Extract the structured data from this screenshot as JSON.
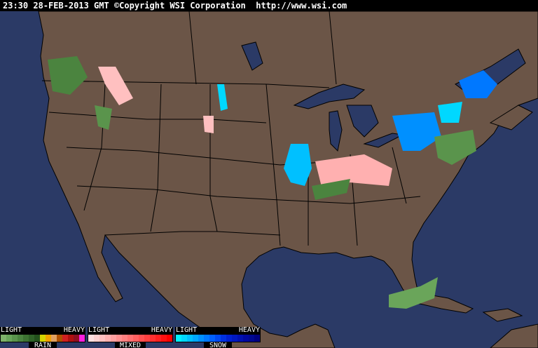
{
  "header": {
    "text": "23:30 28-FEB-2013 GMT ©Copyright WSI Corporation  http://www.wsi.com"
  },
  "colors": {
    "ocean": "#2b3a66",
    "land": "#6b5547",
    "lakes": "#2b3a66",
    "border": "#000000"
  },
  "legends": [
    {
      "name": "RAIN",
      "light": "LIGHT",
      "heavy": "HEAVY",
      "colors": [
        "#7fb26a",
        "#6aa55a",
        "#5a944c",
        "#4b843f",
        "#3d7332",
        "#2f6227",
        "#23511c",
        "#d4d400",
        "#f0a000",
        "#e0a060",
        "#b05000",
        "#d02020",
        "#b01010",
        "#901020",
        "#ff20e0"
      ]
    },
    {
      "name": "MIXED",
      "light": "LIGHT",
      "heavy": "HEAVY",
      "colors": [
        "#ffe0e0",
        "#ffd0d0",
        "#ffc0c0",
        "#ffb0b0",
        "#ffa0a0",
        "#ff9090",
        "#ff8080",
        "#ff7070",
        "#ff6060",
        "#ff5050",
        "#ff4040",
        "#ff3030",
        "#ff2020",
        "#ff1010",
        "#ff0000"
      ]
    },
    {
      "name": "SNOW",
      "light": "LIGHT",
      "heavy": "HEAVY",
      "colors": [
        "#00f0ff",
        "#00d8ff",
        "#00c0ff",
        "#00a8ff",
        "#0090ff",
        "#0078ff",
        "#0060ff",
        "#0048f0",
        "#0030e0",
        "#0020d0",
        "#0018c0",
        "#0010b0",
        "#0008a0",
        "#000890",
        "#000080"
      ]
    }
  ]
}
